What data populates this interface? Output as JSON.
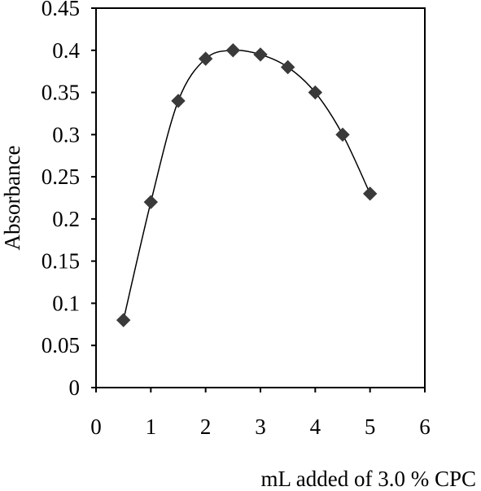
{
  "chart_data": {
    "type": "scatter",
    "title": "",
    "xlabel": "mL added of 3.0 % CPC",
    "ylabel": "Absorbance",
    "xlim": [
      0,
      6
    ],
    "ylim": [
      0,
      0.45
    ],
    "x_ticks": [
      "0",
      "1",
      "2",
      "3",
      "4",
      "5",
      "6"
    ],
    "y_ticks": [
      "0",
      "0.05",
      "0.1",
      "0.15",
      "0.2",
      "0.25",
      "0.3",
      "0.35",
      "0.4",
      "0.45"
    ],
    "grid": false,
    "legend": "none",
    "marker": "diamond",
    "smooth_line": true,
    "colors": {
      "marker": "#3a3a3a",
      "line": "#000000",
      "frame": "#000000"
    },
    "series": [
      {
        "x": [
          0.5,
          1.0,
          1.5,
          2.0,
          2.5,
          3.0,
          3.5,
          4.0,
          4.5,
          5.0
        ],
        "y": [
          0.08,
          0.22,
          0.34,
          0.39,
          0.4,
          0.395,
          0.38,
          0.35,
          0.3,
          0.23
        ]
      }
    ]
  }
}
